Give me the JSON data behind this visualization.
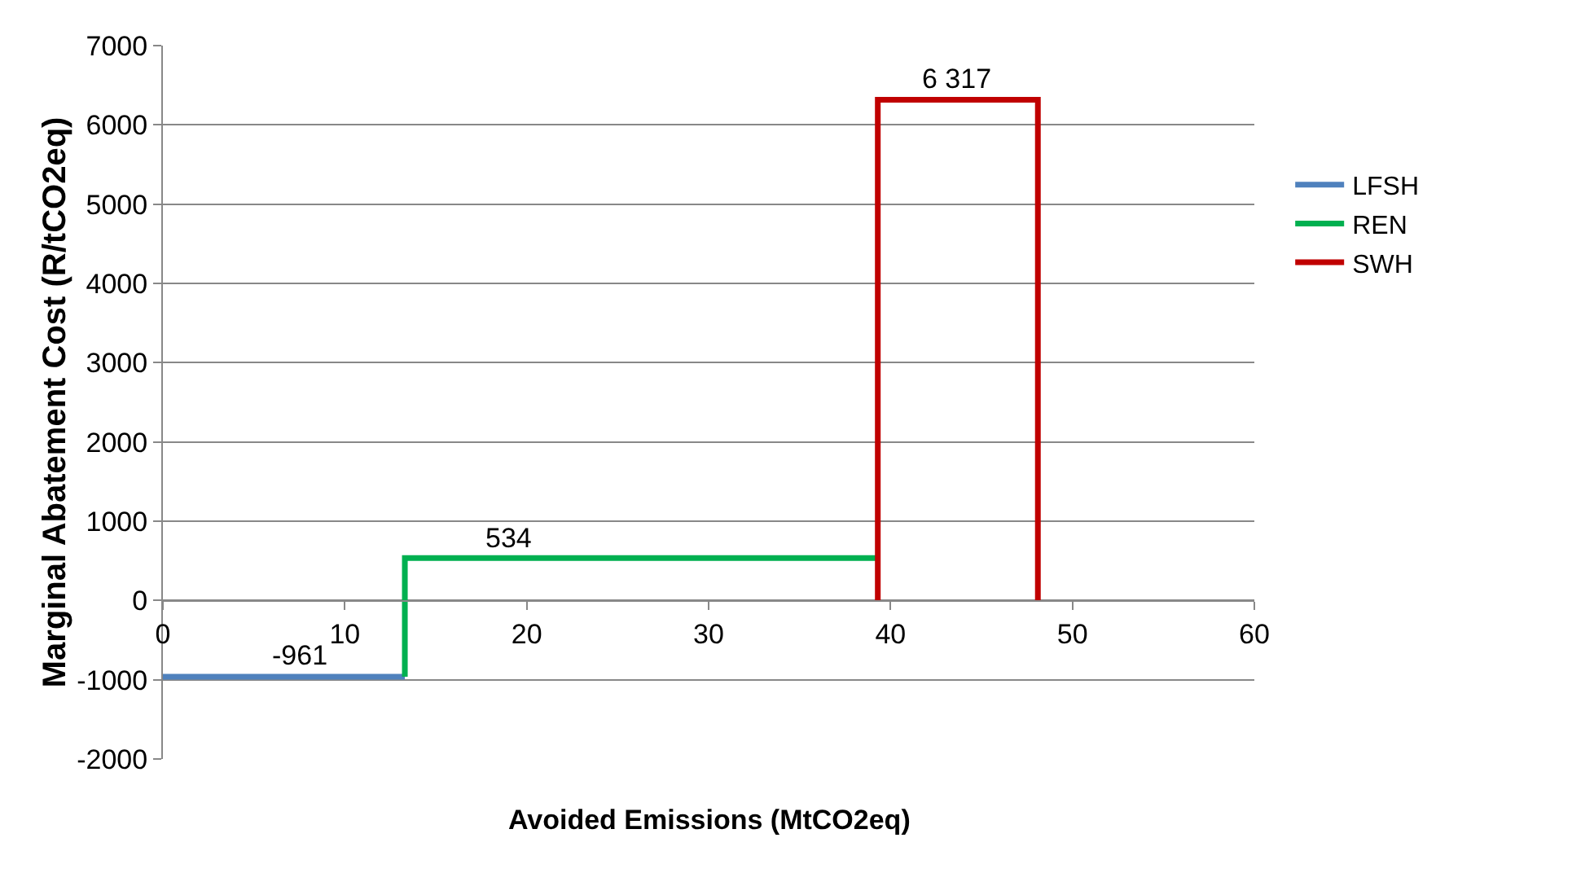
{
  "chart_data": {
    "type": "line",
    "xlabel": "Avoided Emissions (MtCO2eq)",
    "ylabel": "Marginal Abatement Cost (R/tCO2eq)",
    "series": [
      {
        "name": "LFSH",
        "color": "#4f81bd",
        "x": [
          0,
          13.3
        ],
        "values": [
          -961,
          -961
        ]
      },
      {
        "name": "REN",
        "color": "#00b050",
        "x": [
          13.3,
          13.3,
          39.3
        ],
        "values": [
          -961,
          534,
          534
        ]
      },
      {
        "name": "SWH",
        "color": "#c00000",
        "x": [
          39.3,
          39.3,
          48.1,
          48.1
        ],
        "values": [
          0,
          6317,
          6317,
          0
        ]
      }
    ],
    "annotations": [
      {
        "text": "-961",
        "x": 7.5,
        "y": -961
      },
      {
        "text": "534",
        "x": 19,
        "y": 534
      },
      {
        "text": "6 317",
        "x": 43.7,
        "y": 6317
      }
    ],
    "xlim": [
      0,
      60
    ],
    "xticks": [
      0,
      10,
      20,
      30,
      40,
      50,
      60
    ],
    "ylim": [
      -2000,
      7000
    ],
    "yticks": [
      -2000,
      -1000,
      0,
      1000,
      2000,
      3000,
      4000,
      5000,
      6000,
      7000
    ],
    "grid": "y",
    "legend": "right"
  }
}
